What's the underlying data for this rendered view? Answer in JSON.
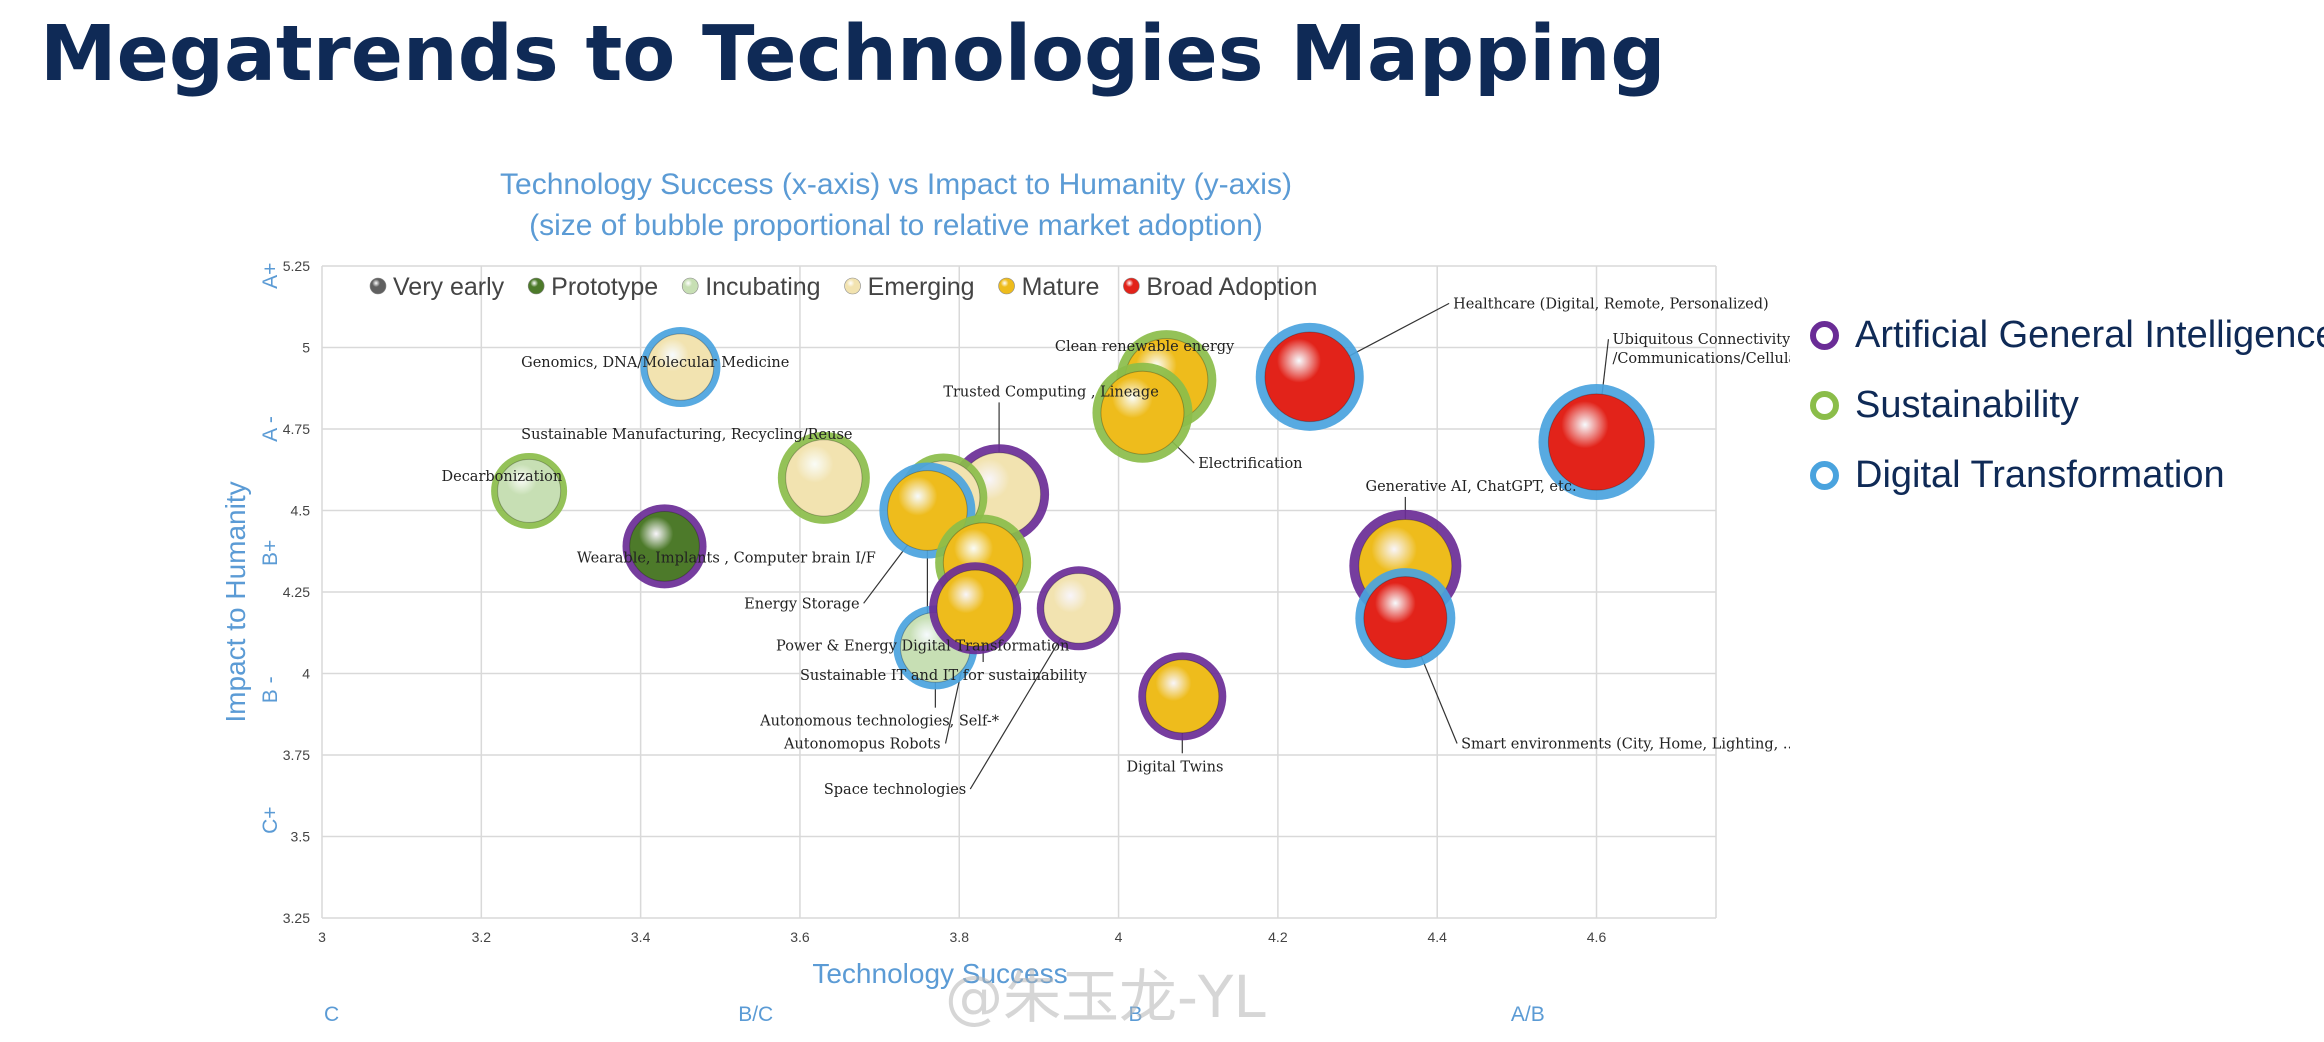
{
  "page": {
    "title": "Megatrends to Technologies Mapping",
    "watermark": "@朱玉龙-YL"
  },
  "colors": {
    "agi": "#6a2c96",
    "sustainability": "#8bbd4a",
    "digital": "#4aa3de",
    "axis_text": "#5b9bd5",
    "title_navy": "#0f2a56",
    "label_text": "#222222",
    "grid": "#d9d9d9"
  },
  "megatrend_legend": [
    {
      "key": "agi",
      "label": "Artificial General Intelligence",
      "color": "#6a2c96"
    },
    {
      "key": "sustainability",
      "label": "Sustainability",
      "color": "#8bbd4a"
    },
    {
      "key": "digital",
      "label": "Digital Transformation",
      "color": "#4aa3de"
    }
  ],
  "chart_data": {
    "type": "scatter",
    "title": "Technology Success (x-axis) vs Impact to Humanity (y-axis)",
    "subtitle": "(size of bubble proportional to relative market adoption)",
    "xlabel": "Technology Success",
    "ylabel": "Impact to Humanity",
    "xlim": [
      3,
      4.75
    ],
    "ylim": [
      3.25,
      5.25
    ],
    "x_ticks": [
      "3",
      "3.2",
      "3.4",
      "3.6",
      "3.8",
      "4",
      "4.2",
      "4.4",
      "4.6"
    ],
    "x_tick_values": [
      3,
      3.2,
      3.4,
      3.6,
      3.8,
      4,
      4.2,
      4.4,
      4.6
    ],
    "y_ticks": [
      "3.25",
      "3.5",
      "3.75",
      "4",
      "4.25",
      "4.5",
      "4.75",
      "5",
      "5.25"
    ],
    "y_tick_values": [
      3.25,
      3.5,
      3.75,
      4,
      4.25,
      4.5,
      4.75,
      5,
      5.25
    ],
    "x_grades": [
      {
        "label": "C",
        "x": 3.0
      },
      {
        "label": "B/C",
        "x": 3.52
      },
      {
        "label": "B",
        "x": 4.01
      },
      {
        "label": "A/B",
        "x": 4.49
      }
    ],
    "y_grades": [
      {
        "label": "A+",
        "y": 5.22
      },
      {
        "label": "A -",
        "y": 4.75
      },
      {
        "label": "B+",
        "y": 4.37
      },
      {
        "label": "B -",
        "y": 3.95
      },
      {
        "label": "C+",
        "y": 3.55
      }
    ],
    "grid": true,
    "legend_position": "top",
    "maturity_legend": [
      {
        "key": "very_early",
        "label": "Very early",
        "color": "#606060"
      },
      {
        "key": "prototype",
        "label": "Prototype",
        "color": "#4d7a2a"
      },
      {
        "key": "incubating",
        "label": "Incubating",
        "color": "#c7dfb4"
      },
      {
        "key": "emerging",
        "label": "Emerging",
        "color": "#f2e3b0"
      },
      {
        "key": "mature",
        "label": "Mature",
        "color": "#eebc1c"
      },
      {
        "key": "broad",
        "label": "Broad Adoption",
        "color": "#e2231a"
      }
    ],
    "points": [
      {
        "label": "Genomics, DNA/Molecular Medicine",
        "x": 3.45,
        "y": 4.94,
        "size": 1.0,
        "maturity": "emerging",
        "megatrend": "digital",
        "label_at": [
          3.25,
          4.94
        ]
      },
      {
        "label": "Sustainable Manufacturing, Recycling/Reuse",
        "x": 3.63,
        "y": 4.6,
        "size": 1.15,
        "maturity": "emerging",
        "megatrend": "sustainability",
        "label_at": [
          3.25,
          4.72
        ]
      },
      {
        "label": "Decarbonization",
        "x": 3.26,
        "y": 4.56,
        "size": 0.95,
        "maturity": "incubating",
        "megatrend": "sustainability",
        "label_at": [
          3.15,
          4.59
        ]
      },
      {
        "label": "Wearable,  Implants , Computer brain I/F",
        "x": 3.43,
        "y": 4.39,
        "size": 1.05,
        "maturity": "prototype",
        "megatrend": "agi",
        "label_at": [
          3.32,
          4.34
        ]
      },
      {
        "label": "Trusted Computing , Lineage",
        "x": 3.85,
        "y": 4.55,
        "size": 1.25,
        "maturity": "emerging",
        "megatrend": "agi",
        "label_at": [
          3.78,
          4.85
        ]
      },
      {
        "label": "Energy Storage",
        "x": 3.78,
        "y": 4.54,
        "size": 1.1,
        "maturity": "emerging",
        "megatrend": "sustainability",
        "label_at": [
          3.53,
          4.2
        ]
      },
      {
        "label": "Power & Energy Digital Transformation",
        "x": 3.76,
        "y": 4.5,
        "size": 1.2,
        "maturity": "mature",
        "megatrend": "digital",
        "label_at": [
          3.57,
          4.07
        ]
      },
      {
        "label": "Sustainable IT and IT for sustainability",
        "x": 3.83,
        "y": 4.34,
        "size": 1.2,
        "maturity": "mature",
        "megatrend": "sustainability",
        "label_at": [
          3.6,
          3.98
        ]
      },
      {
        "label": "Autonomous technologies, Self-*",
        "x": 3.77,
        "y": 4.08,
        "size": 1.05,
        "maturity": "incubating",
        "megatrend": "digital",
        "label_at": [
          3.55,
          3.84
        ]
      },
      {
        "label": "Autonomopus Robots",
        "x": 3.82,
        "y": 4.2,
        "size": 1.15,
        "maturity": "mature",
        "megatrend": "agi",
        "label_at": [
          3.58,
          3.77
        ]
      },
      {
        "label": "Space technologies",
        "x": 3.95,
        "y": 4.2,
        "size": 1.05,
        "maturity": "emerging",
        "megatrend": "agi",
        "label_at": [
          3.63,
          3.63
        ]
      },
      {
        "label": "Clean renewable energy",
        "x": 4.06,
        "y": 4.9,
        "size": 1.25,
        "maturity": "mature",
        "megatrend": "sustainability",
        "label_at": [
          3.92,
          4.99
        ]
      },
      {
        "label": "Electrification",
        "x": 4.03,
        "y": 4.8,
        "size": 1.25,
        "maturity": "mature",
        "megatrend": "sustainability",
        "label_at": [
          4.1,
          4.63
        ]
      },
      {
        "label": "Healthcare (Digital, Remote, Personalized)",
        "x": 4.24,
        "y": 4.91,
        "size": 1.35,
        "maturity": "broad",
        "megatrend": "digital",
        "label_at": [
          4.42,
          5.12
        ]
      },
      {
        "label": "Ubiquitous Connectivity\n/Communications/Cellular",
        "x": 4.6,
        "y": 4.71,
        "size": 1.45,
        "maturity": "broad",
        "megatrend": "digital",
        "label_at": [
          4.62,
          5.01
        ]
      },
      {
        "label": "Generative AI, ChatGPT, etc.",
        "x": 4.36,
        "y": 4.33,
        "size": 1.4,
        "maturity": "mature",
        "megatrend": "agi",
        "label_at": [
          4.31,
          4.56
        ]
      },
      {
        "label": "Smart environments (City, Home, Lighting, ...)",
        "x": 4.36,
        "y": 4.17,
        "size": 1.25,
        "maturity": "broad",
        "megatrend": "digital",
        "label_at": [
          4.43,
          3.77
        ]
      },
      {
        "label": "Digital Twins",
        "x": 4.08,
        "y": 3.93,
        "size": 1.1,
        "maturity": "mature",
        "megatrend": "agi",
        "label_at": [
          4.01,
          3.7
        ]
      }
    ]
  }
}
